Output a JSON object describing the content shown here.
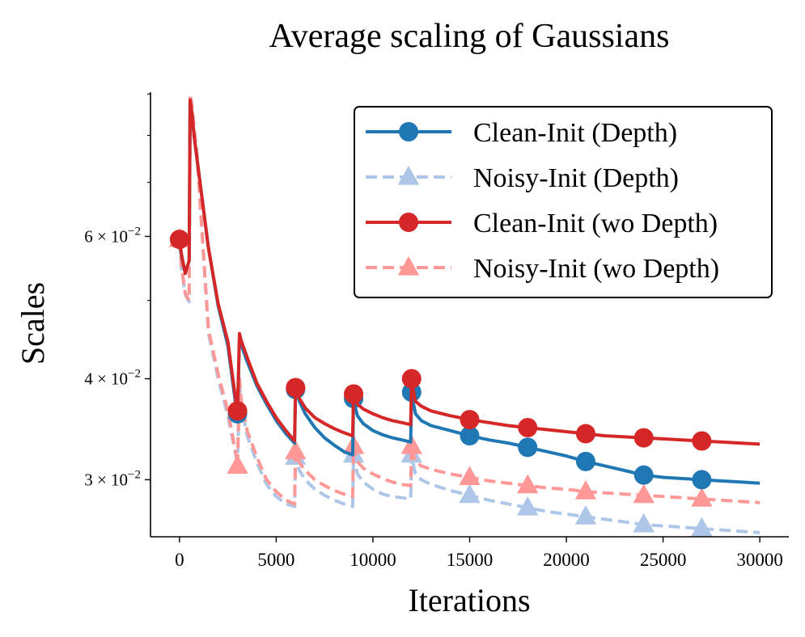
{
  "chart_data": {
    "type": "line",
    "title": "Average scaling of Gaussians",
    "xlabel": "Iterations",
    "ylabel": "Scales",
    "xlim": [
      -1500,
      31500
    ],
    "ylim": [
      0.0255,
      0.0905
    ],
    "yscale": "log",
    "x_ticks": [
      0,
      5000,
      10000,
      15000,
      20000,
      25000,
      30000
    ],
    "x_tick_labels": [
      "0",
      "5000",
      "10000",
      "15000",
      "20000",
      "25000",
      "30000"
    ],
    "y_major_ticks": [
      {
        "value": 0.03,
        "base": "3 × 10",
        "exp": "−2"
      },
      {
        "value": 0.04,
        "base": "4 × 10",
        "exp": "−2"
      },
      {
        "value": 0.06,
        "base": "6 × 10",
        "exp": "−2"
      }
    ],
    "y_minor_ticks": [
      0.05,
      0.07,
      0.08,
      0.09
    ],
    "legend_position": "top-right",
    "series": [
      {
        "name": "Clean-Init (wo Depth)",
        "color": "#d62728",
        "dash": "solid",
        "marker": "circle",
        "x": [
          0,
          100,
          300,
          500,
          550,
          650,
          750,
          900,
          1500,
          2000,
          2500,
          2950,
          3000,
          3100,
          3200,
          3500,
          4000,
          4500,
          5000,
          5500,
          5950,
          6000,
          6100,
          6200,
          6500,
          7000,
          7500,
          8000,
          8500,
          8950,
          9000,
          9100,
          9200,
          9500,
          10000,
          10500,
          11000,
          11500,
          11950,
          12000,
          12100,
          12200,
          12500,
          13000,
          14000,
          15000,
          16000,
          17000,
          18000,
          19000,
          20000,
          21000,
          22000,
          23000,
          24000,
          25000,
          26000,
          27000,
          28000,
          29000,
          30000
        ],
        "y": [
          0.0595,
          0.057,
          0.054,
          0.056,
          0.0885,
          0.085,
          0.08,
          0.075,
          0.058,
          0.0495,
          0.0445,
          0.037,
          0.0365,
          0.0455,
          0.0445,
          0.0425,
          0.0395,
          0.0375,
          0.0358,
          0.0345,
          0.0335,
          0.039,
          0.0385,
          0.0378,
          0.0368,
          0.0358,
          0.0352,
          0.0347,
          0.0343,
          0.034,
          0.0383,
          0.0378,
          0.0372,
          0.0367,
          0.0362,
          0.0358,
          0.0355,
          0.0353,
          0.0351,
          0.04,
          0.0385,
          0.0375,
          0.037,
          0.0365,
          0.036,
          0.0356,
          0.0353,
          0.035,
          0.0348,
          0.0346,
          0.0344,
          0.0342,
          0.034,
          0.0339,
          0.0338,
          0.0337,
          0.0336,
          0.0335,
          0.0334,
          0.0333,
          0.0332
        ],
        "markers_at": [
          0,
          3000,
          6000,
          9000,
          12000,
          15000,
          18000,
          21000,
          24000,
          27000
        ]
      },
      {
        "name": "Clean-Init (Depth)",
        "color": "#1f77b4",
        "dash": "solid",
        "marker": "circle",
        "x": [
          0,
          100,
          300,
          500,
          550,
          650,
          750,
          900,
          1500,
          2000,
          2500,
          2950,
          3000,
          3100,
          3200,
          3500,
          4000,
          4500,
          5000,
          5500,
          5950,
          6000,
          6100,
          6200,
          6500,
          7000,
          7500,
          8000,
          8500,
          8950,
          9000,
          9100,
          9200,
          9500,
          10000,
          10500,
          11000,
          11500,
          11950,
          12000,
          12100,
          12200,
          12500,
          13000,
          14000,
          15000,
          16000,
          17000,
          18000,
          19000,
          20000,
          21000,
          22000,
          23000,
          24000,
          25000,
          26000,
          27000,
          28000,
          29000,
          30000
        ],
        "y": [
          0.0592,
          0.0568,
          0.054,
          0.056,
          0.0885,
          0.085,
          0.08,
          0.075,
          0.058,
          0.0492,
          0.044,
          0.0365,
          0.0362,
          0.045,
          0.044,
          0.042,
          0.0392,
          0.0372,
          0.0355,
          0.0342,
          0.0333,
          0.0388,
          0.0382,
          0.0375,
          0.0362,
          0.0348,
          0.0338,
          0.0331,
          0.0325,
          0.0322,
          0.0378,
          0.0368,
          0.036,
          0.0352,
          0.0345,
          0.0341,
          0.0338,
          0.0336,
          0.0334,
          0.0385,
          0.0372,
          0.0362,
          0.0355,
          0.035,
          0.0345,
          0.034,
          0.0336,
          0.0333,
          0.0329,
          0.0325,
          0.0321,
          0.0316,
          0.0312,
          0.0308,
          0.0304,
          0.0302,
          0.0301,
          0.03,
          0.0299,
          0.0298,
          0.0297
        ],
        "markers_at": [
          3000,
          6000,
          9000,
          12000,
          15000,
          18000,
          21000,
          24000,
          27000
        ]
      },
      {
        "name": "Noisy-Init (wo Depth)",
        "color": "#ff9896",
        "dash": "dashed",
        "marker": "triangle",
        "x": [
          0,
          100,
          300,
          500,
          550,
          650,
          750,
          900,
          1500,
          2000,
          2500,
          2950,
          3000,
          3100,
          3200,
          3500,
          4000,
          4500,
          5000,
          5500,
          5950,
          6000,
          6100,
          6200,
          6500,
          7000,
          7500,
          8000,
          8500,
          8950,
          9000,
          9100,
          9200,
          9500,
          10000,
          10500,
          11000,
          11500,
          11950,
          12000,
          12100,
          12200,
          12500,
          13000,
          14000,
          15000,
          16000,
          17000,
          18000,
          19000,
          20000,
          21000,
          22000,
          23000,
          24000,
          25000,
          26000,
          27000,
          28000,
          29000,
          30000
        ],
        "y": [
          0.0595,
          0.055,
          0.051,
          0.05,
          0.09,
          0.087,
          0.082,
          0.076,
          0.046,
          0.0405,
          0.0365,
          0.032,
          0.0312,
          0.04,
          0.0375,
          0.0345,
          0.032,
          0.03,
          0.029,
          0.0283,
          0.028,
          0.0325,
          0.032,
          0.0315,
          0.0308,
          0.03,
          0.0295,
          0.0291,
          0.0288,
          0.0286,
          0.033,
          0.0322,
          0.0316,
          0.031,
          0.0305,
          0.0301,
          0.0298,
          0.0296,
          0.0295,
          0.033,
          0.0322,
          0.0316,
          0.0312,
          0.0309,
          0.0305,
          0.0302,
          0.0299,
          0.0297,
          0.0295,
          0.0293,
          0.0292,
          0.029,
          0.0289,
          0.0288,
          0.0287,
          0.0286,
          0.0285,
          0.0284,
          0.0283,
          0.0282,
          0.0281
        ],
        "markers_at": [
          0,
          3000,
          6000,
          9000,
          12000,
          15000,
          18000,
          21000,
          24000,
          27000
        ]
      },
      {
        "name": "Noisy-Init (Depth)",
        "color": "#aec7e8",
        "dash": "dashed",
        "marker": "triangle",
        "x": [
          0,
          100,
          300,
          500,
          550,
          650,
          750,
          900,
          1500,
          2000,
          2500,
          2950,
          3000,
          3100,
          3200,
          3500,
          4000,
          4500,
          5000,
          5500,
          5950,
          6000,
          6100,
          6200,
          6500,
          7000,
          7500,
          8000,
          8500,
          8950,
          9000,
          9100,
          9200,
          9500,
          10000,
          10500,
          11000,
          11500,
          11950,
          12000,
          12100,
          12200,
          12500,
          13000,
          14000,
          15000,
          16000,
          17000,
          18000,
          19000,
          20000,
          21000,
          22000,
          23000,
          24000,
          25000,
          26000,
          27000,
          28000,
          29000,
          30000
        ],
        "y": [
          0.059,
          0.0548,
          0.0508,
          0.0498,
          0.09,
          0.087,
          0.082,
          0.076,
          0.0455,
          0.04,
          0.036,
          0.0318,
          0.031,
          0.0395,
          0.037,
          0.034,
          0.0315,
          0.0296,
          0.0286,
          0.028,
          0.0278,
          0.032,
          0.0314,
          0.0308,
          0.03,
          0.0292,
          0.0287,
          0.0283,
          0.028,
          0.0278,
          0.0322,
          0.0313,
          0.0305,
          0.0298,
          0.0292,
          0.0288,
          0.0286,
          0.0285,
          0.0284,
          0.0322,
          0.0312,
          0.0305,
          0.03,
          0.0296,
          0.0291,
          0.0287,
          0.0283,
          0.028,
          0.0277,
          0.0274,
          0.0272,
          0.027,
          0.0268,
          0.0266,
          0.0264,
          0.0263,
          0.0262,
          0.0261,
          0.026,
          0.0259,
          0.0258
        ],
        "markers_at": [
          6000,
          9000,
          12000,
          15000,
          18000,
          21000,
          24000,
          27000
        ]
      }
    ],
    "legend_order": [
      "Clean-Init (Depth)",
      "Noisy-Init (Depth)",
      "Clean-Init (wo Depth)",
      "Noisy-Init (wo Depth)"
    ]
  }
}
